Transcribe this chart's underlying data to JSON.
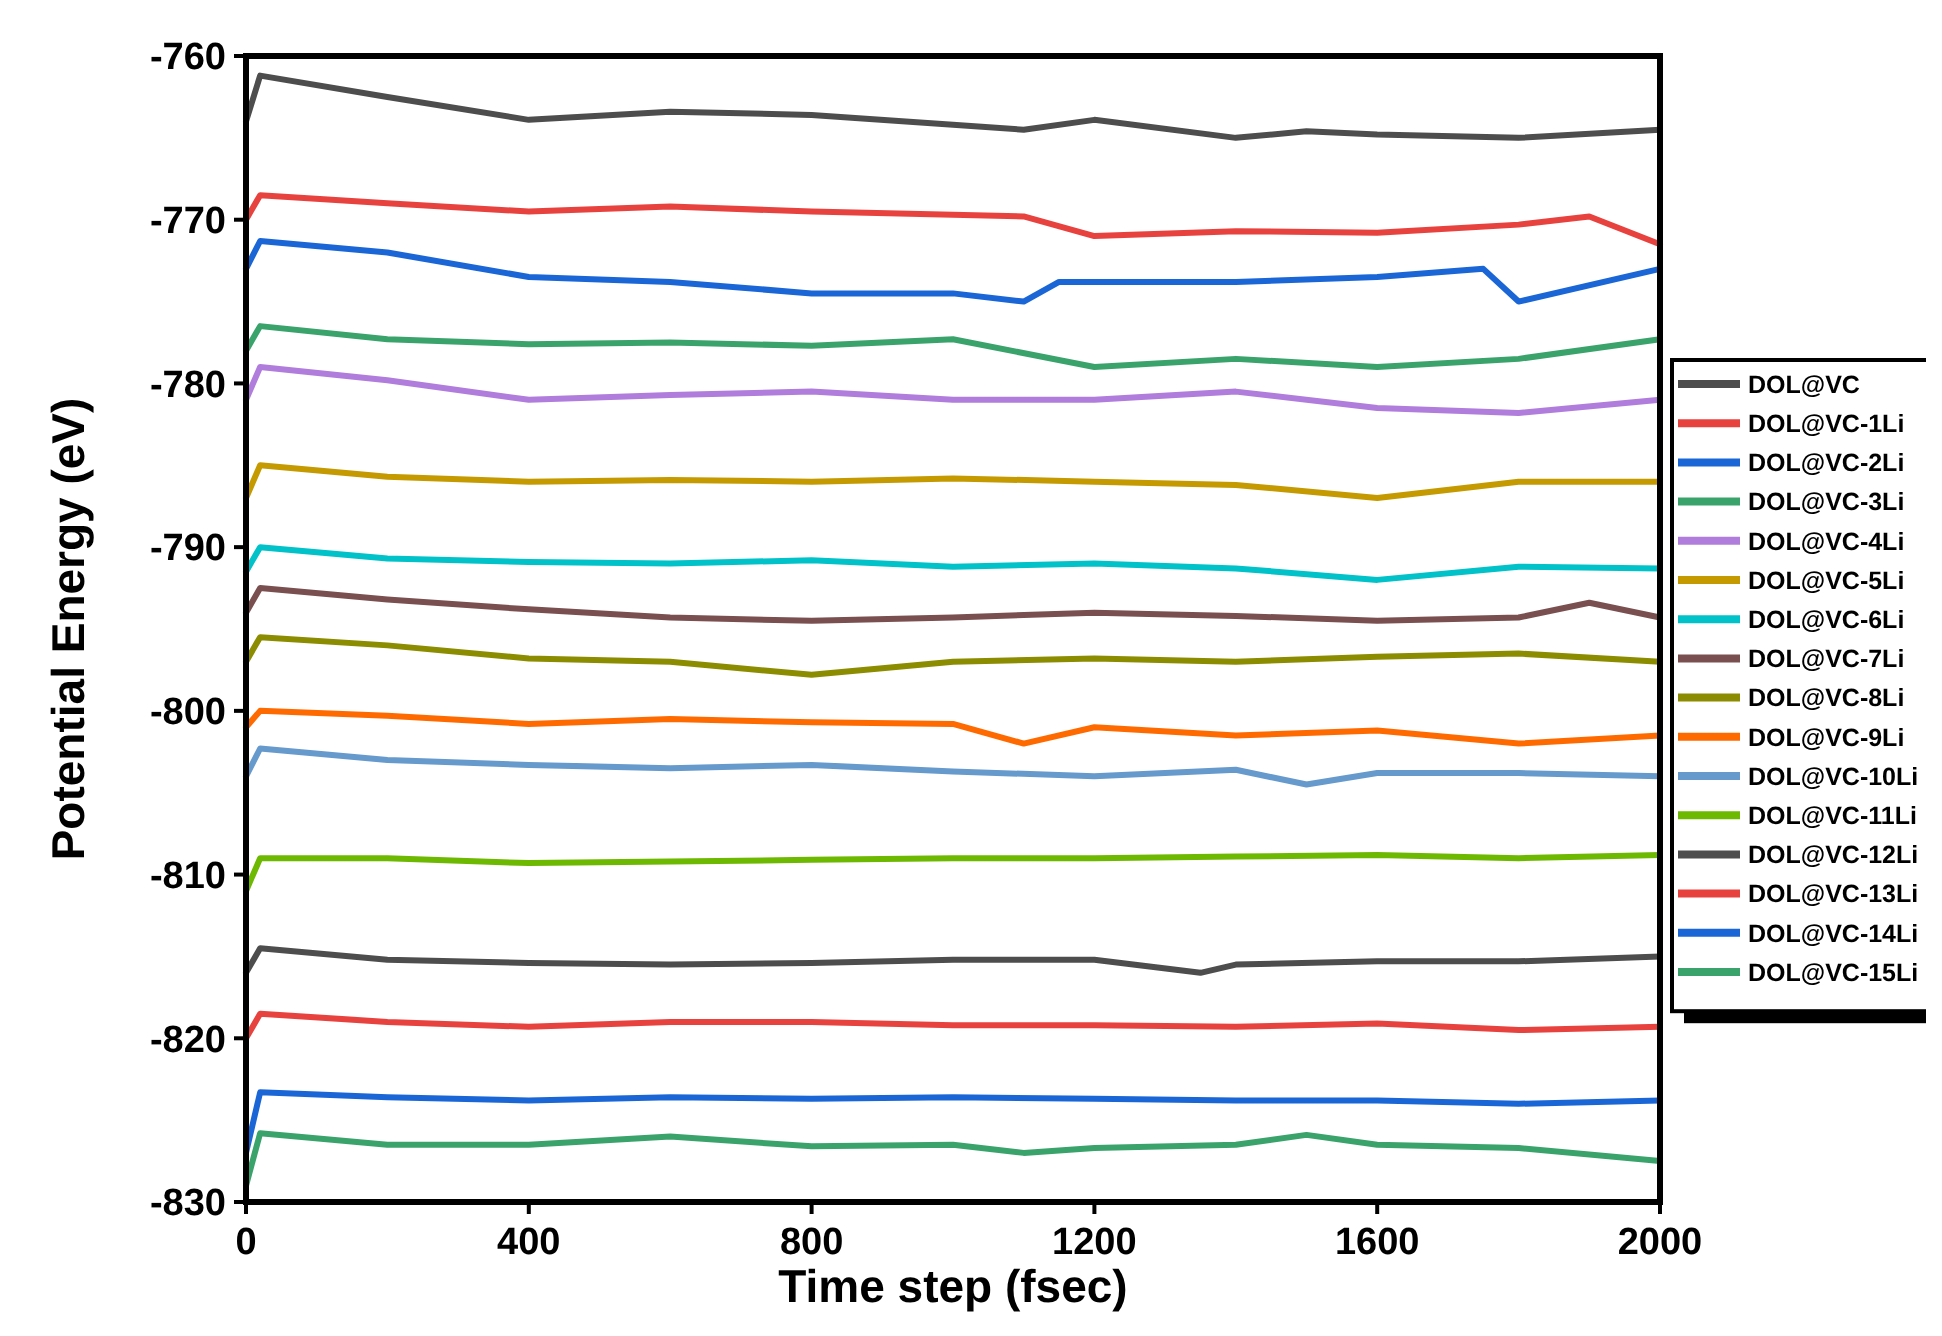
{
  "chart_data": {
    "type": "line",
    "xlabel": "Time step (fsec)",
    "ylabel": "Potential Energy (eV)",
    "xlim": [
      0,
      2000
    ],
    "xticks": [
      0,
      400,
      800,
      1200,
      1600,
      2000
    ],
    "ylim": [
      -830,
      -760
    ],
    "yticks": [
      -830,
      -820,
      -810,
      -800,
      -790,
      -780,
      -770,
      -760
    ],
    "legend": "right",
    "grid": false,
    "marker": "none",
    "line_style": "solid",
    "series": [
      {
        "name": "DOL@VC",
        "color": "#4d4d4d",
        "x": [
          0,
          20,
          200,
          400,
          600,
          800,
          1000,
          1100,
          1200,
          1400,
          1500,
          1600,
          1800,
          2000
        ],
        "values": [
          -764,
          -761.2,
          -762.5,
          -763.9,
          -763.4,
          -763.6,
          -764.2,
          -764.5,
          -763.9,
          -765,
          -764.6,
          -764.8,
          -765,
          -764.5
        ]
      },
      {
        "name": "DOL@VC-1Li",
        "color": "#e8423f",
        "x": [
          0,
          20,
          200,
          400,
          600,
          800,
          1000,
          1100,
          1200,
          1400,
          1600,
          1800,
          1900,
          2000
        ],
        "values": [
          -770,
          -768.5,
          -769,
          -769.5,
          -769.2,
          -769.5,
          -769.7,
          -769.8,
          -771,
          -770.7,
          -770.8,
          -770.3,
          -769.8,
          -771.5
        ]
      },
      {
        "name": "DOL@VC-2Li",
        "color": "#1a66d6",
        "x": [
          0,
          20,
          200,
          400,
          600,
          800,
          1000,
          1100,
          1150,
          1400,
          1600,
          1750,
          1800,
          2000
        ],
        "values": [
          -773,
          -771.3,
          -772,
          -773.5,
          -773.8,
          -774.5,
          -774.5,
          -775,
          -773.8,
          -773.8,
          -773.5,
          -773,
          -775,
          -773
        ]
      },
      {
        "name": "DOL@VC-3Li",
        "color": "#3aa36b",
        "x": [
          0,
          20,
          200,
          400,
          600,
          800,
          1000,
          1200,
          1400,
          1600,
          1800,
          2000
        ],
        "values": [
          -778,
          -776.5,
          -777.3,
          -777.6,
          -777.5,
          -777.7,
          -777.3,
          -779,
          -778.5,
          -779,
          -778.5,
          -777.3
        ]
      },
      {
        "name": "DOL@VC-4Li",
        "color": "#b07ddc",
        "x": [
          0,
          20,
          200,
          400,
          600,
          800,
          1000,
          1200,
          1400,
          1600,
          1800,
          2000
        ],
        "values": [
          -781,
          -779,
          -779.8,
          -781,
          -780.7,
          -780.5,
          -781,
          -781,
          -780.5,
          -781.5,
          -781.8,
          -781
        ]
      },
      {
        "name": "DOL@VC-5Li",
        "color": "#c49a00",
        "x": [
          0,
          20,
          200,
          400,
          600,
          800,
          1000,
          1200,
          1400,
          1600,
          1800,
          2000
        ],
        "values": [
          -787,
          -785,
          -785.7,
          -786,
          -785.9,
          -786,
          -785.8,
          -786,
          -786.2,
          -787,
          -786,
          -786
        ]
      },
      {
        "name": "DOL@VC-6Li",
        "color": "#00c2c8",
        "x": [
          0,
          20,
          200,
          400,
          600,
          800,
          1000,
          1200,
          1400,
          1600,
          1800,
          2000
        ],
        "values": [
          -791.5,
          -790,
          -790.7,
          -790.9,
          -791,
          -790.8,
          -791.2,
          -791,
          -791.3,
          -792,
          -791.2,
          -791.3
        ]
      },
      {
        "name": "DOL@VC-7Li",
        "color": "#7a4f4f",
        "x": [
          0,
          20,
          200,
          400,
          600,
          800,
          1000,
          1200,
          1400,
          1600,
          1800,
          1900,
          2000
        ],
        "values": [
          -794,
          -792.5,
          -793.2,
          -793.8,
          -794.3,
          -794.5,
          -794.3,
          -794,
          -794.2,
          -794.5,
          -794.3,
          -793.4,
          -794.3
        ]
      },
      {
        "name": "DOL@VC-8Li",
        "color": "#8c8c00",
        "x": [
          0,
          20,
          200,
          400,
          600,
          800,
          1000,
          1200,
          1400,
          1600,
          1800,
          2000
        ],
        "values": [
          -797,
          -795.5,
          -796,
          -796.8,
          -797,
          -797.8,
          -797,
          -796.8,
          -797,
          -796.7,
          -796.5,
          -797
        ]
      },
      {
        "name": "DOL@VC-9Li",
        "color": "#ff6a00",
        "x": [
          0,
          20,
          200,
          400,
          600,
          800,
          1000,
          1100,
          1200,
          1400,
          1600,
          1800,
          2000
        ],
        "values": [
          -801,
          -800,
          -800.3,
          -800.8,
          -800.5,
          -800.7,
          -800.8,
          -802,
          -801,
          -801.5,
          -801.2,
          -802,
          -801.5
        ]
      },
      {
        "name": "DOL@VC-10Li",
        "color": "#6699cc",
        "x": [
          0,
          20,
          200,
          400,
          600,
          800,
          1000,
          1200,
          1400,
          1500,
          1600,
          1800,
          2000
        ],
        "values": [
          -804,
          -802.3,
          -803,
          -803.3,
          -803.5,
          -803.3,
          -803.7,
          -804,
          -803.6,
          -804.5,
          -803.8,
          -803.8,
          -804
        ]
      },
      {
        "name": "DOL@VC-11Li",
        "color": "#6db800",
        "x": [
          0,
          20,
          200,
          400,
          600,
          800,
          1000,
          1200,
          1400,
          1600,
          1800,
          2000
        ],
        "values": [
          -811,
          -809,
          -809,
          -809.3,
          -809.2,
          -809.1,
          -809,
          -809,
          -808.9,
          -808.8,
          -809,
          -808.8
        ]
      },
      {
        "name": "DOL@VC-12Li",
        "color": "#4d4d4d",
        "x": [
          0,
          20,
          200,
          400,
          600,
          800,
          1000,
          1200,
          1350,
          1400,
          1600,
          1800,
          2000
        ],
        "values": [
          -816,
          -814.5,
          -815.2,
          -815.4,
          -815.5,
          -815.4,
          -815.2,
          -815.2,
          -816,
          -815.5,
          -815.3,
          -815.3,
          -815
        ]
      },
      {
        "name": "DOL@VC-13Li",
        "color": "#e8423f",
        "x": [
          0,
          20,
          200,
          400,
          600,
          800,
          1000,
          1200,
          1400,
          1600,
          1800,
          2000
        ],
        "values": [
          -820,
          -818.5,
          -819,
          -819.3,
          -819,
          -819,
          -819.2,
          -819.2,
          -819.3,
          -819.1,
          -819.5,
          -819.3
        ]
      },
      {
        "name": "DOL@VC-14Li",
        "color": "#1a66d6",
        "x": [
          0,
          20,
          200,
          400,
          600,
          800,
          1000,
          1200,
          1400,
          1600,
          1800,
          2000
        ],
        "values": [
          -827,
          -823.3,
          -823.6,
          -823.8,
          -823.6,
          -823.7,
          -823.6,
          -823.7,
          -823.8,
          -823.8,
          -824,
          -823.8
        ]
      },
      {
        "name": "DOL@VC-15Li",
        "color": "#3aa36b",
        "x": [
          0,
          20,
          200,
          400,
          600,
          800,
          1000,
          1100,
          1200,
          1400,
          1500,
          1600,
          1800,
          2000
        ],
        "values": [
          -829,
          -825.8,
          -826.5,
          -826.5,
          -826,
          -826.6,
          -826.5,
          -827,
          -826.7,
          -826.5,
          -825.9,
          -826.5,
          -826.7,
          -827.5
        ]
      }
    ]
  }
}
